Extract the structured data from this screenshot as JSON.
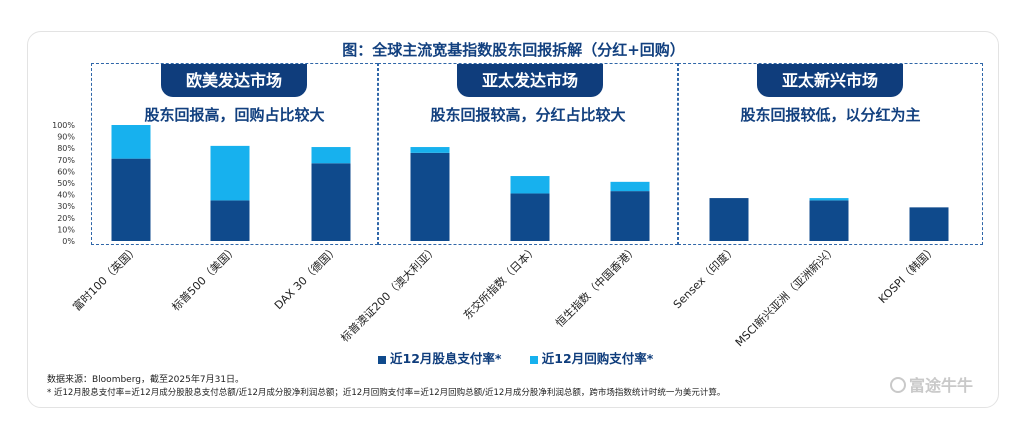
{
  "title": "图：全球主流宽基指数股东回报拆解（分红+回购）",
  "panels": [
    {
      "tab": "欧美发达市场",
      "subtitle": "股东回报高，回购占比较大"
    },
    {
      "tab": "亚太发达市场",
      "subtitle": "股东回报较高，分红占比较大"
    },
    {
      "tab": "亚太新兴市场",
      "subtitle": "股东回报较低，以分红为主"
    }
  ],
  "legend": [
    {
      "label": "近12月股息支付率*",
      "color": "#0f4a8c"
    },
    {
      "label": "近12月回购支付率*",
      "color": "#17b1ee"
    }
  ],
  "source": "数据来源：Bloomberg，截至2025年7月31日。",
  "note": "* 近12月股息支付率=近12月成分股股息支付总额/近12月成分股净利润总额；近12月回购支付率=近12月回购总额/近12月成分股净利润总额，跨市场指数统计时统一为美元计算。",
  "logo": "富途牛牛",
  "chart_data": {
    "type": "bar",
    "stacked": true,
    "categories": [
      "富时100（英国）",
      "标普500（美国）",
      "DAX 30（德国）",
      "标普澳证200（澳大利亚）",
      "东交所指数（日本）",
      "恒生指数（中国香港）",
      "Sensex（印度）",
      "MSCI新兴亚洲（亚洲新兴）",
      "KOSPI（韩国）"
    ],
    "series": [
      {
        "name": "近12月股息支付率*",
        "color": "#0f4a8c",
        "values": [
          71,
          35,
          67,
          76,
          41,
          43,
          37,
          35,
          29
        ]
      },
      {
        "name": "近12月回购支付率*",
        "color": "#17b1ee",
        "values": [
          29,
          47,
          14,
          5,
          15,
          8,
          0,
          2,
          0
        ]
      }
    ],
    "yticks": [
      "0%",
      "10%",
      "20%",
      "30%",
      "40%",
      "50%",
      "60%",
      "70%",
      "80%",
      "90%",
      "100%"
    ],
    "ylim": [
      0,
      100
    ]
  }
}
